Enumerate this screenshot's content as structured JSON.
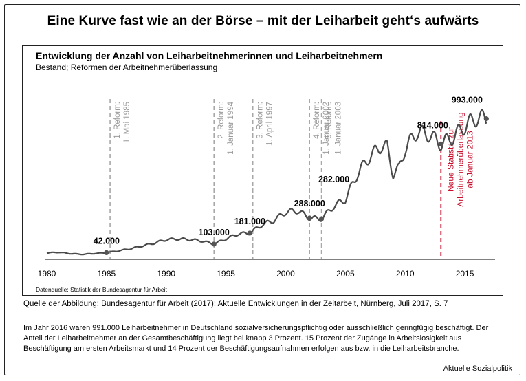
{
  "header": {
    "title": "Eine Kurve fast wie an der Börse – mit der Leiharbeit geht‘s aufwärts"
  },
  "chart_data": {
    "type": "line",
    "title": "Entwicklung der Anzahl von Leiharbeitnehmerinnen und Leiharbeitnehmern",
    "subtitle": "Bestand; Reformen der Arbeitnehmerüberlassung",
    "xlabel": "",
    "ylabel": "",
    "xlim": [
      1980,
      2017.3
    ],
    "ylim": [
      0,
      1250000
    ],
    "x_ticks": [
      1980,
      1985,
      1990,
      1995,
      2000,
      2005,
      2010,
      2015
    ],
    "series": [
      {
        "name": "Leiharbeitnehmer (Bestand)",
        "x": [
          1980,
          1981,
          1982,
          1983,
          1984,
          1985,
          1986,
          1987,
          1988,
          1989,
          1990,
          1991,
          1992,
          1993,
          1994,
          1995,
          1996,
          1997,
          1998,
          1999,
          2000,
          2001,
          2002,
          2003,
          2004,
          2005,
          2006,
          2007,
          2008,
          2008.5,
          2009,
          2009.5,
          2010,
          2011,
          2012,
          2013,
          2014,
          2015,
          2016,
          2016.8
        ],
        "values": [
          40000,
          45000,
          35000,
          30000,
          36000,
          42000,
          55000,
          70000,
          90000,
          110000,
          135000,
          140000,
          135000,
          125000,
          103000,
          140000,
          175000,
          181000,
          240000,
          270000,
          330000,
          340000,
          288000,
          282000,
          370000,
          420000,
          600000,
          720000,
          800000,
          790000,
          600000,
          640000,
          780000,
          900000,
          880000,
          814000,
          860000,
          940000,
          1000000,
          993000
        ]
      }
    ],
    "reforms": [
      {
        "year": 1985.3,
        "label_1": "1. Reform:",
        "label_2": "1. Mai 1985"
      },
      {
        "year": 1994,
        "label_1": "2. Reform:",
        "label_2": "1. Januar 1994"
      },
      {
        "year": 1997.25,
        "label_1": "3. Reform:",
        "label_2": "1. April 1997"
      },
      {
        "year": 2002,
        "label_1": "4. Reform:",
        "label_2": "1. Januar 2002"
      },
      {
        "year": 2003,
        "label_1": "5. Reform:",
        "label_2": "1. Januar 2003"
      }
    ],
    "statistic_break": {
      "year": 2013,
      "lines": [
        "Neue Statistik zur",
        "Arbeitnehmerüberlassung",
        "ab Januar 2013"
      ]
    },
    "annotations": [
      {
        "year": 1985,
        "value": 42000,
        "label": "42.000"
      },
      {
        "year": 1994,
        "value": 103000,
        "label": "103.000"
      },
      {
        "year": 1997,
        "value": 181000,
        "label": "181.000"
      },
      {
        "year": 2002,
        "value": 288000,
        "label": "288.000"
      },
      {
        "year": 2003,
        "value": 282000,
        "label": "282.000"
      },
      {
        "year": 2013,
        "value": 814000,
        "label": "814.000"
      },
      {
        "year": 2016.8,
        "value": 993000,
        "label": "993.000"
      }
    ],
    "colors": {
      "series": "#4a4a4a",
      "reform_line": "#a8a8a8",
      "statistic_line": "#c8102e",
      "marker": "#555555"
    }
  },
  "footer": {
    "datasource": "Datenquelle: Statistik der Bundesagentur für Arbeit",
    "source": "Quelle der Abbildung: Bundesagentur für Arbeit (2017): Aktuelle Entwicklungen in der Zeitarbeit, Nürnberg, Juli 2017, S. 7",
    "body": "Im Jahr 2016 waren 991.000 Leiharbeitnehmer in Deutschland sozialversicherungspflichtig oder ausschließlich geringfügig beschäftigt. Der Anteil der Leiharbeitnehmer an der Gesamtbeschäftigung liegt bei knapp 3 Prozent. 15 Prozent der Zugänge in Arbeitslosigkeit aus Beschäftigung am ersten Arbeitsmarkt und 14 Prozent der Beschäftigungsaufnahmen erfolgen aus bzw. in die Leiharbeitsbranche.",
    "credit": "Aktuelle Sozialpolitik"
  }
}
